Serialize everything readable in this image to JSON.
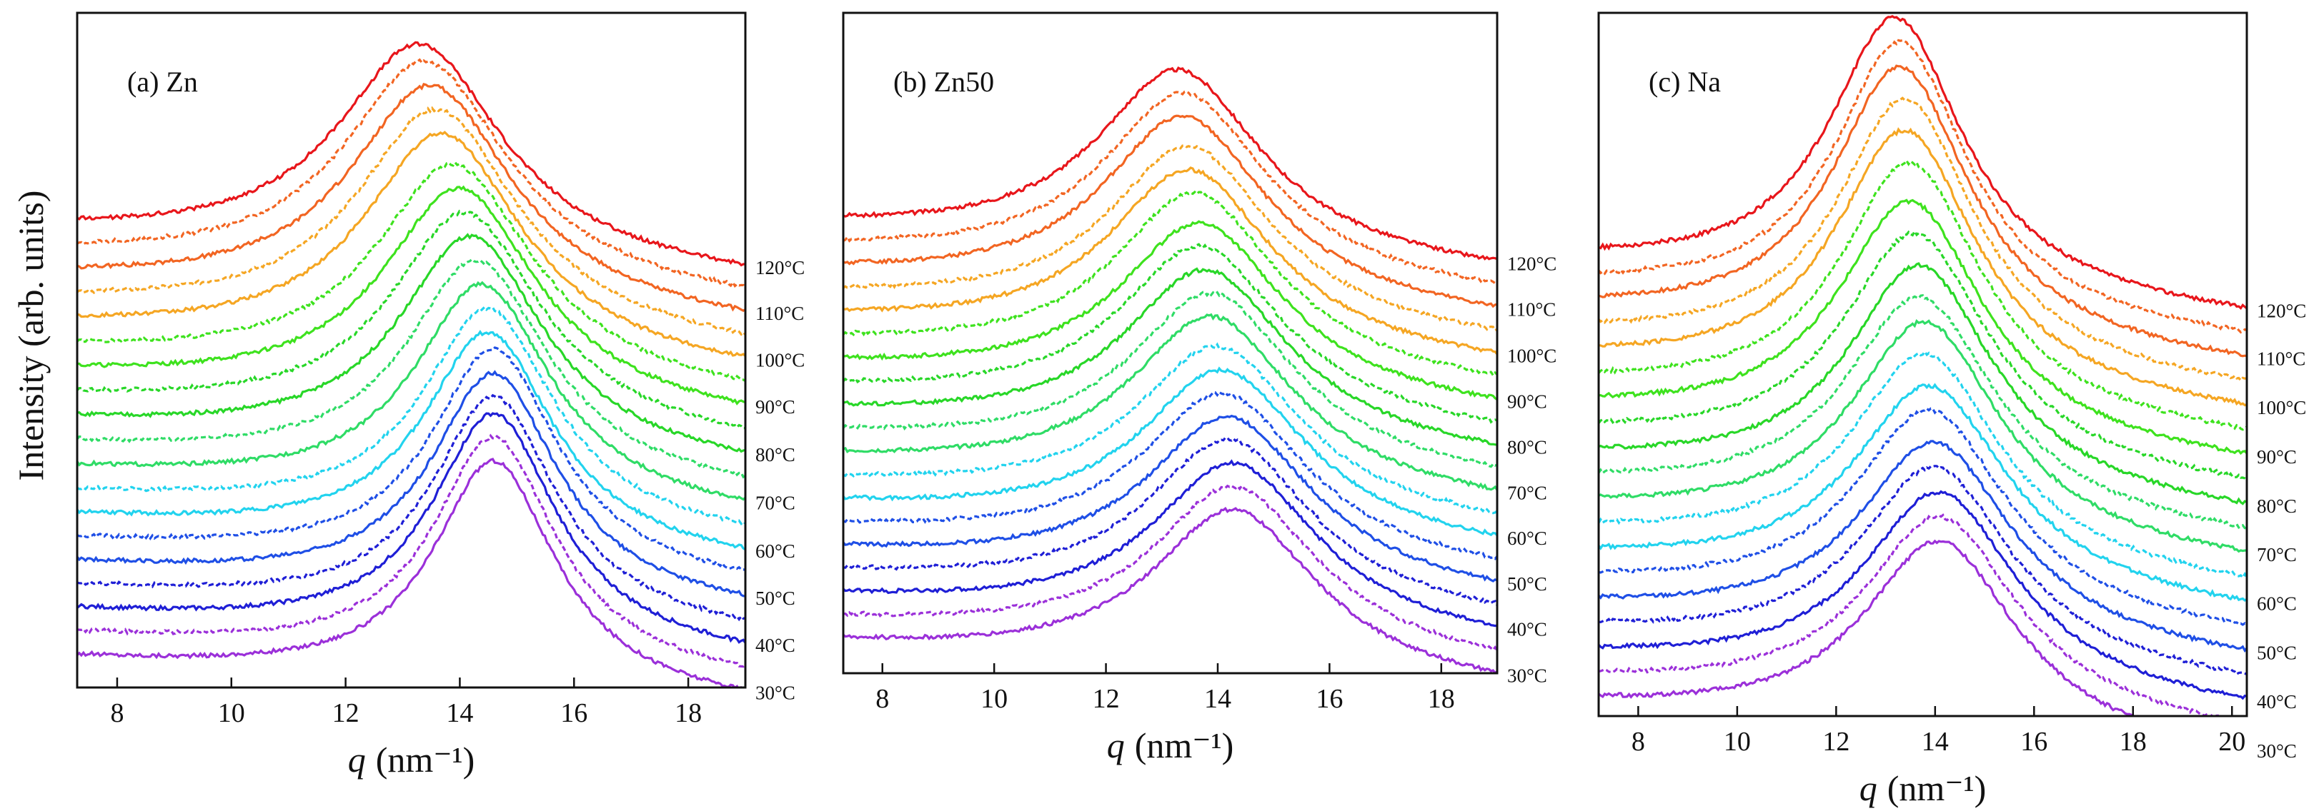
{
  "figure": {
    "ylabel": "Intensity (arb. units)",
    "xlabel_symbol": "q",
    "xlabel_unit": "(nm⁻¹)"
  },
  "chart_data": [
    {
      "type": "line",
      "title": "(a) Zn",
      "xlabel": "q (nm⁻¹)",
      "ylabel": "Intensity (arb. units)",
      "xlim": [
        7.3,
        19.0
      ],
      "ylim": [
        0,
        1
      ],
      "xticks": [
        8,
        10,
        12,
        14,
        16,
        18
      ],
      "temperature_labels": [
        "120°C",
        "110°C",
        "100°C",
        "90°C",
        "80°C",
        "70°C",
        "60°C",
        "50°C",
        "40°C",
        "30°C"
      ],
      "series": [
        {
          "name": "30°C",
          "color": "#9b30d9",
          "style": "solid",
          "peak_q": 14.6,
          "width": 1.3,
          "baseline": 0.04,
          "amplitude": 0.34
        },
        {
          "name": "35°C",
          "color": "#9b30d9",
          "style": "dashed",
          "peak_q": 14.6,
          "width": 1.3,
          "baseline": 0.075,
          "amplitude": 0.34
        },
        {
          "name": "40°C",
          "color": "#1f1fd6",
          "style": "solid",
          "peak_q": 14.6,
          "width": 1.32,
          "baseline": 0.11,
          "amplitude": 0.34
        },
        {
          "name": "45°C",
          "color": "#1f1fd6",
          "style": "dashed",
          "peak_q": 14.6,
          "width": 1.32,
          "baseline": 0.145,
          "amplitude": 0.33
        },
        {
          "name": "50°C",
          "color": "#1f4fe6",
          "style": "solid",
          "peak_q": 14.6,
          "width": 1.34,
          "baseline": 0.18,
          "amplitude": 0.33
        },
        {
          "name": "55°C",
          "color": "#1f4fe6",
          "style": "dashed",
          "peak_q": 14.6,
          "width": 1.36,
          "baseline": 0.215,
          "amplitude": 0.33
        },
        {
          "name": "60°C",
          "color": "#22d3ee",
          "style": "solid",
          "peak_q": 14.5,
          "width": 1.38,
          "baseline": 0.25,
          "amplitude": 0.32
        },
        {
          "name": "65°C",
          "color": "#22d3ee",
          "style": "dashed",
          "peak_q": 14.5,
          "width": 1.4,
          "baseline": 0.285,
          "amplitude": 0.32
        },
        {
          "name": "70°C",
          "color": "#2fdc66",
          "style": "solid",
          "peak_q": 14.4,
          "width": 1.45,
          "baseline": 0.32,
          "amplitude": 0.32
        },
        {
          "name": "75°C",
          "color": "#2fdc66",
          "style": "dashed",
          "peak_q": 14.3,
          "width": 1.5,
          "baseline": 0.355,
          "amplitude": 0.32
        },
        {
          "name": "80°C",
          "color": "#28d728",
          "style": "solid",
          "peak_q": 14.2,
          "width": 1.55,
          "baseline": 0.39,
          "amplitude": 0.32
        },
        {
          "name": "85°C",
          "color": "#28d728",
          "style": "dashed",
          "peak_q": 14.1,
          "width": 1.6,
          "baseline": 0.425,
          "amplitude": 0.32
        },
        {
          "name": "90°C",
          "color": "#3ee21e",
          "style": "solid",
          "peak_q": 14.0,
          "width": 1.65,
          "baseline": 0.46,
          "amplitude": 0.32
        },
        {
          "name": "95°C",
          "color": "#3ee21e",
          "style": "dashed",
          "peak_q": 13.9,
          "width": 1.68,
          "baseline": 0.495,
          "amplitude": 0.32
        },
        {
          "name": "100°C",
          "color": "#f5a623",
          "style": "solid",
          "peak_q": 13.7,
          "width": 1.7,
          "baseline": 0.53,
          "amplitude": 0.33
        },
        {
          "name": "105°C",
          "color": "#f5a623",
          "style": "dashed",
          "peak_q": 13.6,
          "width": 1.72,
          "baseline": 0.565,
          "amplitude": 0.33
        },
        {
          "name": "110°C",
          "color": "#f26522",
          "style": "solid",
          "peak_q": 13.5,
          "width": 1.74,
          "baseline": 0.6,
          "amplitude": 0.33
        },
        {
          "name": "115°C",
          "color": "#f26522",
          "style": "dashed",
          "peak_q": 13.4,
          "width": 1.75,
          "baseline": 0.635,
          "amplitude": 0.33
        },
        {
          "name": "120°C",
          "color": "#e8161b",
          "style": "solid",
          "peak_q": 13.3,
          "width": 1.76,
          "baseline": 0.67,
          "amplitude": 0.32
        }
      ]
    },
    {
      "type": "line",
      "title": "(b) Zn50",
      "xlabel": "q (nm⁻¹)",
      "ylabel": "Intensity (arb. units)",
      "xlim": [
        7.3,
        19.0
      ],
      "ylim": [
        0,
        1
      ],
      "xticks": [
        8,
        10,
        12,
        14,
        16,
        18
      ],
      "temperature_labels": [
        "120°C",
        "110°C",
        "100°C",
        "90°C",
        "80°C",
        "70°C",
        "60°C",
        "50°C",
        "40°C",
        "30°C"
      ],
      "series": [
        {
          "name": "30°C",
          "color": "#9b30d9",
          "style": "solid",
          "peak_q": 14.3,
          "width": 1.8,
          "baseline": 0.04,
          "amplitude": 0.25
        },
        {
          "name": "35°C",
          "color": "#9b30d9",
          "style": "dashed",
          "peak_q": 14.3,
          "width": 1.8,
          "baseline": 0.075,
          "amplitude": 0.25
        },
        {
          "name": "40°C",
          "color": "#1f1fd6",
          "style": "solid",
          "peak_q": 14.3,
          "width": 1.8,
          "baseline": 0.11,
          "amplitude": 0.25
        },
        {
          "name": "45°C",
          "color": "#1f1fd6",
          "style": "dashed",
          "peak_q": 14.2,
          "width": 1.8,
          "baseline": 0.145,
          "amplitude": 0.25
        },
        {
          "name": "50°C",
          "color": "#1f4fe6",
          "style": "solid",
          "peak_q": 14.2,
          "width": 1.8,
          "baseline": 0.18,
          "amplitude": 0.25
        },
        {
          "name": "55°C",
          "color": "#1f4fe6",
          "style": "dashed",
          "peak_q": 14.1,
          "width": 1.8,
          "baseline": 0.215,
          "amplitude": 0.25
        },
        {
          "name": "60°C",
          "color": "#22d3ee",
          "style": "solid",
          "peak_q": 14.1,
          "width": 1.8,
          "baseline": 0.25,
          "amplitude": 0.25
        },
        {
          "name": "65°C",
          "color": "#22d3ee",
          "style": "dashed",
          "peak_q": 14.0,
          "width": 1.8,
          "baseline": 0.285,
          "amplitude": 0.25
        },
        {
          "name": "70°C",
          "color": "#2fdc66",
          "style": "solid",
          "peak_q": 13.9,
          "width": 1.8,
          "baseline": 0.32,
          "amplitude": 0.26
        },
        {
          "name": "75°C",
          "color": "#2fdc66",
          "style": "dashed",
          "peak_q": 13.9,
          "width": 1.8,
          "baseline": 0.355,
          "amplitude": 0.26
        },
        {
          "name": "80°C",
          "color": "#28d728",
          "style": "solid",
          "peak_q": 13.8,
          "width": 1.8,
          "baseline": 0.39,
          "amplitude": 0.26
        },
        {
          "name": "85°C",
          "color": "#28d728",
          "style": "dashed",
          "peak_q": 13.7,
          "width": 1.8,
          "baseline": 0.425,
          "amplitude": 0.26
        },
        {
          "name": "90°C",
          "color": "#3ee21e",
          "style": "solid",
          "peak_q": 13.7,
          "width": 1.8,
          "baseline": 0.46,
          "amplitude": 0.26
        },
        {
          "name": "95°C",
          "color": "#3ee21e",
          "style": "dashed",
          "peak_q": 13.6,
          "width": 1.8,
          "baseline": 0.495,
          "amplitude": 0.27
        },
        {
          "name": "100°C",
          "color": "#f5a623",
          "style": "solid",
          "peak_q": 13.5,
          "width": 1.8,
          "baseline": 0.53,
          "amplitude": 0.27
        },
        {
          "name": "105°C",
          "color": "#f5a623",
          "style": "dashed",
          "peak_q": 13.5,
          "width": 1.8,
          "baseline": 0.565,
          "amplitude": 0.27
        },
        {
          "name": "110°C",
          "color": "#f26522",
          "style": "solid",
          "peak_q": 13.4,
          "width": 1.8,
          "baseline": 0.6,
          "amplitude": 0.28
        },
        {
          "name": "115°C",
          "color": "#f26522",
          "style": "dashed",
          "peak_q": 13.4,
          "width": 1.8,
          "baseline": 0.635,
          "amplitude": 0.28
        },
        {
          "name": "120°C",
          "color": "#e8161b",
          "style": "solid",
          "peak_q": 13.3,
          "width": 1.8,
          "baseline": 0.67,
          "amplitude": 0.28
        }
      ]
    },
    {
      "type": "line",
      "title": "(c) Na",
      "xlabel": "q (nm⁻¹)",
      "ylabel": "Intensity (arb. units)",
      "xlim": [
        7.2,
        20.3
      ],
      "ylim": [
        0,
        1
      ],
      "xticks": [
        8,
        10,
        12,
        14,
        16,
        18,
        20
      ],
      "temperature_labels": [
        "120°C",
        "110°C",
        "100°C",
        "90°C",
        "80°C",
        "70°C",
        "60°C",
        "50°C",
        "40°C",
        "30°C"
      ],
      "series": [
        {
          "name": "30°C",
          "color": "#9b30d9",
          "style": "solid",
          "peak_q": 14.1,
          "width": 1.9,
          "baseline": 0.01,
          "amplitude": 0.28
        },
        {
          "name": "35°C",
          "color": "#9b30d9",
          "style": "dashed",
          "peak_q": 14.1,
          "width": 1.9,
          "baseline": 0.045,
          "amplitude": 0.28
        },
        {
          "name": "40°C",
          "color": "#1f1fd6",
          "style": "solid",
          "peak_q": 14.1,
          "width": 1.9,
          "baseline": 0.08,
          "amplitude": 0.28
        },
        {
          "name": "45°C",
          "color": "#1f1fd6",
          "style": "dashed",
          "peak_q": 14.0,
          "width": 1.9,
          "baseline": 0.115,
          "amplitude": 0.28
        },
        {
          "name": "50°C",
          "color": "#1f4fe6",
          "style": "solid",
          "peak_q": 14.0,
          "width": 1.9,
          "baseline": 0.15,
          "amplitude": 0.28
        },
        {
          "name": "55°C",
          "color": "#1f4fe6",
          "style": "dashed",
          "peak_q": 13.9,
          "width": 1.9,
          "baseline": 0.185,
          "amplitude": 0.29
        },
        {
          "name": "60°C",
          "color": "#22d3ee",
          "style": "solid",
          "peak_q": 13.9,
          "width": 1.9,
          "baseline": 0.22,
          "amplitude": 0.29
        },
        {
          "name": "65°C",
          "color": "#22d3ee",
          "style": "dashed",
          "peak_q": 13.8,
          "width": 1.85,
          "baseline": 0.255,
          "amplitude": 0.3
        },
        {
          "name": "70°C",
          "color": "#2fdc66",
          "style": "solid",
          "peak_q": 13.8,
          "width": 1.85,
          "baseline": 0.29,
          "amplitude": 0.31
        },
        {
          "name": "75°C",
          "color": "#2fdc66",
          "style": "dashed",
          "peak_q": 13.7,
          "width": 1.85,
          "baseline": 0.325,
          "amplitude": 0.31
        },
        {
          "name": "80°C",
          "color": "#28d728",
          "style": "solid",
          "peak_q": 13.7,
          "width": 1.8,
          "baseline": 0.36,
          "amplitude": 0.32
        },
        {
          "name": "85°C",
          "color": "#28d728",
          "style": "dashed",
          "peak_q": 13.6,
          "width": 1.8,
          "baseline": 0.395,
          "amplitude": 0.33
        },
        {
          "name": "90°C",
          "color": "#3ee21e",
          "style": "solid",
          "peak_q": 13.5,
          "width": 1.8,
          "baseline": 0.43,
          "amplitude": 0.34
        },
        {
          "name": "95°C",
          "color": "#3ee21e",
          "style": "dashed",
          "peak_q": 13.5,
          "width": 1.75,
          "baseline": 0.465,
          "amplitude": 0.36
        },
        {
          "name": "100°C",
          "color": "#f5a623",
          "style": "solid",
          "peak_q": 13.4,
          "width": 1.75,
          "baseline": 0.5,
          "amplitude": 0.37
        },
        {
          "name": "105°C",
          "color": "#f5a623",
          "style": "dashed",
          "peak_q": 13.4,
          "width": 1.7,
          "baseline": 0.535,
          "amplitude": 0.38
        },
        {
          "name": "110°C",
          "color": "#f26522",
          "style": "solid",
          "peak_q": 13.3,
          "width": 1.7,
          "baseline": 0.57,
          "amplitude": 0.39
        },
        {
          "name": "115°C",
          "color": "#f26522",
          "style": "dashed",
          "peak_q": 13.3,
          "width": 1.65,
          "baseline": 0.605,
          "amplitude": 0.39
        },
        {
          "name": "120°C",
          "color": "#e8161b",
          "style": "solid",
          "peak_q": 13.2,
          "width": 1.65,
          "baseline": 0.64,
          "amplitude": 0.39
        }
      ]
    }
  ]
}
